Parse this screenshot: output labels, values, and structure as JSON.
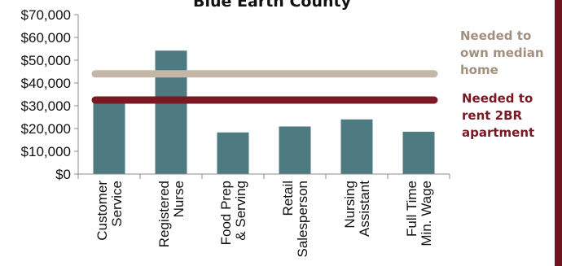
{
  "chart_data": {
    "type": "bar",
    "title": "Blue Earth County",
    "categories": [
      [
        "Customer",
        "Service"
      ],
      [
        "Registered",
        "Nurse"
      ],
      [
        "Food Prep",
        "& Serving"
      ],
      [
        "Retail",
        "Salesperson"
      ],
      [
        "Nursing",
        "Assistant"
      ],
      [
        "Full Time",
        "Min. Wage"
      ]
    ],
    "values": [
      31500,
      54200,
      18300,
      20900,
      24000,
      18600
    ],
    "ylim": [
      0,
      70000
    ],
    "yticks": [
      0,
      10000,
      20000,
      30000,
      40000,
      50000,
      60000,
      70000
    ],
    "ytick_labels": [
      "$0",
      "$10,000",
      "$20,000",
      "$30,000",
      "$40,000",
      "$50,000",
      "$60,000",
      "$70,000"
    ],
    "grid": false,
    "reference_lines": [
      {
        "label": [
          "Needed to",
          "own median",
          "home"
        ],
        "value": 44000,
        "color": "#c4b7a8"
      },
      {
        "label": [
          "Needed to",
          "rent 2BR",
          "apartment"
        ],
        "value": 32500,
        "color": "#7a1824"
      }
    ],
    "colors": {
      "bar": "#4e7a82",
      "axis": "#8c8c8c",
      "frame_accent": "#6e1420"
    }
  }
}
